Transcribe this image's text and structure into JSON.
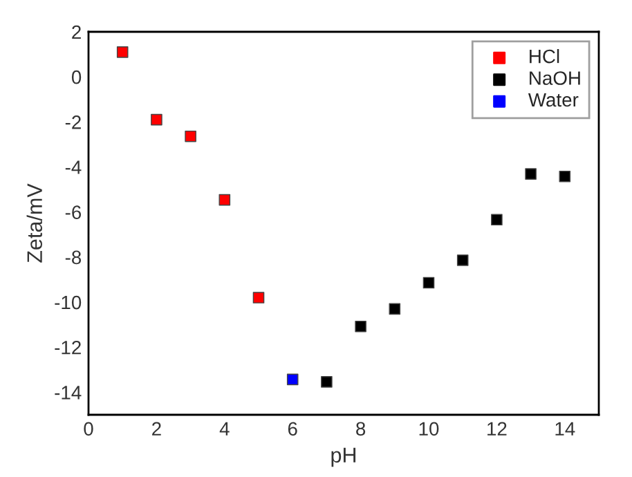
{
  "chart_data": {
    "type": "scatter",
    "xlabel": "pH",
    "ylabel": "Zeta/mV",
    "marker": "square",
    "legend": "top right",
    "grid": false,
    "xlim": [
      0,
      15
    ],
    "xticks": [
      0,
      2,
      4,
      6,
      8,
      10,
      12,
      14
    ],
    "ylim": [
      -15,
      2
    ],
    "yticks": [
      -14,
      -12,
      -10,
      -8,
      -6,
      -4,
      -2,
      0,
      2
    ],
    "series": [
      {
        "name": "HCl",
        "color": "#ff0000",
        "x": [
          1,
          2,
          3,
          4,
          5
        ],
        "values": [
          1.1,
          -1.9,
          -2.64,
          -5.46,
          -9.8
        ]
      },
      {
        "name": "NaOH",
        "color": "#000000",
        "x": [
          7,
          8,
          9,
          10,
          11,
          12,
          13,
          14
        ],
        "values": [
          -13.54,
          -11.08,
          -10.3,
          -9.14,
          -8.14,
          -6.34,
          -4.31,
          -4.42
        ]
      },
      {
        "name": "Water",
        "color": "#0000ff",
        "x": [
          6
        ],
        "values": [
          -13.43
        ]
      }
    ]
  }
}
